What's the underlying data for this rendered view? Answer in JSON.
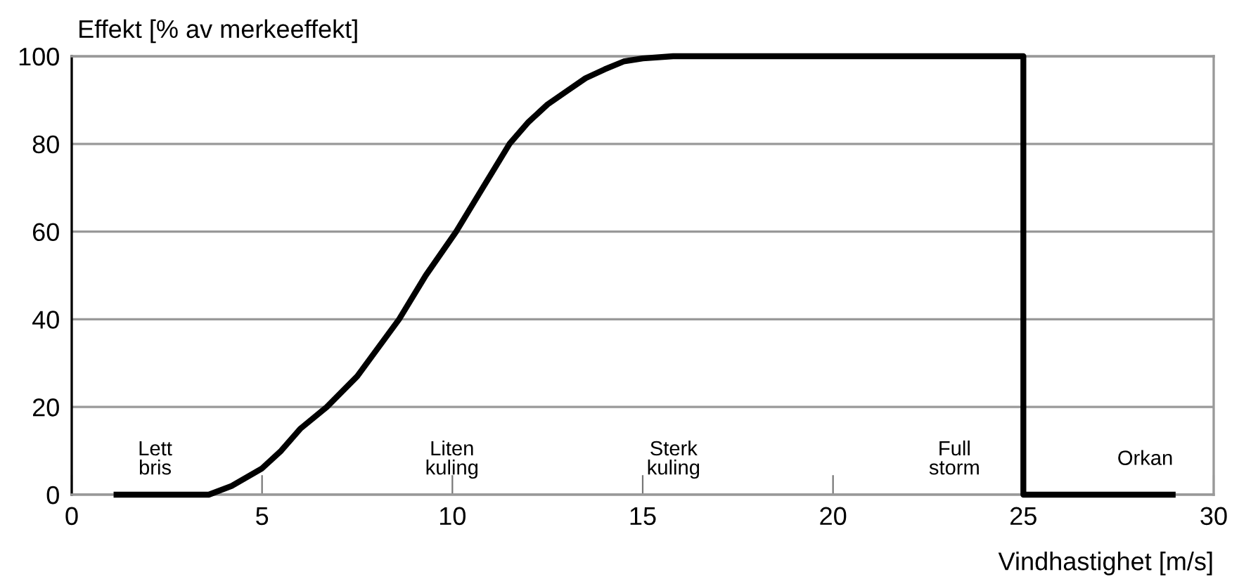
{
  "chart_data": {
    "type": "line",
    "ylabel": "Effekt [% av merkeeffekt]",
    "xlabel": "Vindhastighet [m/s]",
    "xlim": [
      0,
      30
    ],
    "xticks": [
      0,
      5,
      10,
      15,
      20,
      25,
      30
    ],
    "ylim": [
      0,
      100
    ],
    "yticks": [
      0,
      20,
      40,
      60,
      80,
      100
    ],
    "grid": "y",
    "marker": "none",
    "line_style": "solid",
    "series": [
      {
        "color": "#000000",
        "x": [
          1.1,
          3.6,
          4.2,
          5,
          5.5,
          6,
          6.7,
          7.5,
          8.6,
          9.3,
          10.1,
          10.8,
          11.5,
          12,
          12.5,
          13,
          13.5,
          14,
          14.5,
          15,
          15.8,
          25,
          25,
          29
        ],
        "values": [
          0,
          0,
          2,
          6,
          10,
          15,
          20,
          27,
          40,
          50,
          60,
          70,
          80,
          85,
          89,
          92,
          95,
          97,
          98.8,
          99.5,
          100,
          100,
          0,
          0
        ]
      }
    ],
    "annotations": [
      "Lett\nbris",
      "Liten\nkuling",
      "Sterk\nkuling",
      "Full\nstorm",
      "Orkan"
    ]
  }
}
